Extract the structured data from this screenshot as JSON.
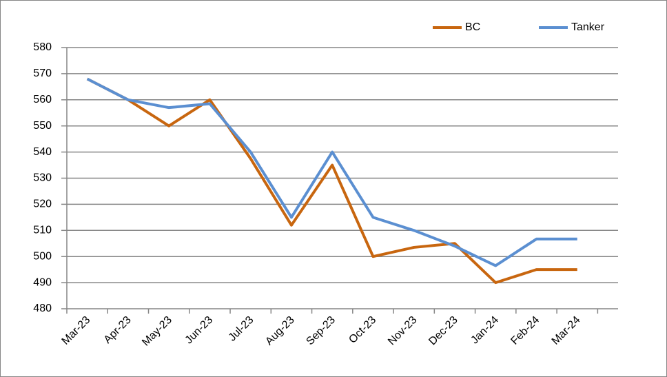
{
  "chart_data": {
    "type": "line",
    "categories": [
      "Mar-23",
      "Apr-23",
      "May-23",
      "Jun-23",
      "Jul-23",
      "Aug-23",
      "Sep-23",
      "Oct-23",
      "Nov-23",
      "Dec-23",
      "Jan-24",
      "Feb-24",
      "Mar-24"
    ],
    "series": [
      {
        "name": "BC",
        "color": "#c8660f",
        "values": [
          568,
          560,
          550,
          560,
          537.5,
          512,
          535,
          500,
          503.5,
          505,
          490,
          495,
          495
        ]
      },
      {
        "name": "Tanker",
        "color": "#5b8fd1",
        "values": [
          568,
          560,
          557,
          558.5,
          540,
          515,
          540,
          515,
          510,
          504,
          496.5,
          506.7,
          506.7
        ]
      }
    ],
    "ylim": [
      480,
      580
    ],
    "yticks": [
      480,
      490,
      500,
      510,
      520,
      530,
      540,
      550,
      560,
      570,
      580
    ],
    "grid": true,
    "legend": "top-right"
  }
}
